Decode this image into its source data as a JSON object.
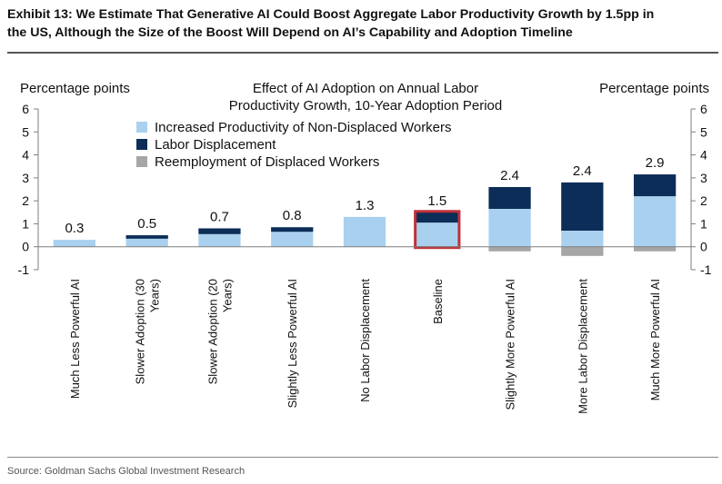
{
  "header": {
    "title_line1": "Exhibit 13: We Estimate That Generative AI Could Boost Aggregate Labor Productivity Growth by 1.5pp in",
    "title_line2": "the US, Although the Size of the Boost Will Depend on AI’s Capability and Adoption Timeline"
  },
  "footer": {
    "source": "Source: Goldman Sachs Global Investment Research"
  },
  "chart_data": {
    "type": "bar",
    "stacked": true,
    "title_line1": "Effect of AI Adoption on Annual Labor",
    "title_line2": "Productivity Growth, 10-Year Adoption Period",
    "ylabel_left": "Percentage points",
    "ylabel_right": "Percentage points",
    "ylim": [
      -1,
      6
    ],
    "yticks": [
      -1,
      0,
      1,
      2,
      3,
      4,
      5,
      6
    ],
    "legend_position": "top-left",
    "categories": [
      [
        "Much Less Powerful AI"
      ],
      [
        "Slower Adoption (30",
        "Years)"
      ],
      [
        "Slower Adoption (20",
        "Years)"
      ],
      [
        "Slightly Less Powerful AI"
      ],
      [
        "No Labor Displacement"
      ],
      [
        "Baseline"
      ],
      [
        "Slightly More Powerful AI"
      ],
      [
        "More Labor Displacement"
      ],
      [
        "Much More Powerful AI"
      ]
    ],
    "series": [
      {
        "name": "Increased Productivity of Non-Displaced Workers",
        "color": "#a9d0ee",
        "values": [
          0.3,
          0.35,
          0.55,
          0.65,
          1.3,
          1.05,
          1.65,
          0.7,
          2.2
        ]
      },
      {
        "name": "Labor Displacement",
        "color": "#0b2d57",
        "values": [
          0.0,
          0.15,
          0.25,
          0.2,
          0.0,
          0.45,
          0.95,
          2.1,
          0.95
        ]
      },
      {
        "name": "Reemployment of Displaced Workers",
        "color": "#a6a6a6",
        "values": [
          0.0,
          0.0,
          0.0,
          0.0,
          0.0,
          0.0,
          -0.2,
          -0.4,
          -0.2
        ]
      }
    ],
    "totals": [
      "0.3",
      "0.5",
      "0.7",
      "0.8",
      "1.3",
      "1.5",
      "2.4",
      "2.4",
      "2.9"
    ],
    "highlighted_category_index": 5,
    "highlight_color": "#c0303a",
    "axis_color": "#7f7f7f"
  }
}
